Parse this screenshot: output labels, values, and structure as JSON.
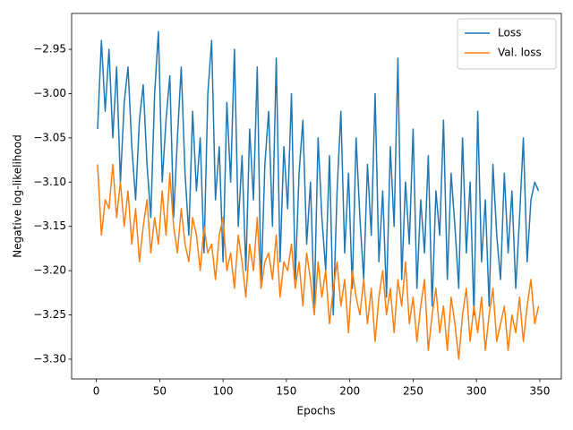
{
  "chart_data": {
    "type": "line",
    "xlabel": "Epochs",
    "ylabel": "Negative log-likelihood",
    "x": [
      1,
      4,
      7,
      10,
      13,
      16,
      19,
      22,
      25,
      28,
      31,
      34,
      37,
      40,
      43,
      46,
      49,
      52,
      55,
      58,
      61,
      64,
      67,
      70,
      73,
      76,
      79,
      82,
      85,
      88,
      91,
      94,
      97,
      100,
      103,
      106,
      109,
      112,
      115,
      118,
      121,
      124,
      127,
      130,
      133,
      136,
      139,
      142,
      145,
      148,
      151,
      154,
      157,
      160,
      163,
      166,
      169,
      172,
      175,
      178,
      181,
      184,
      187,
      190,
      193,
      196,
      199,
      202,
      205,
      208,
      211,
      214,
      217,
      220,
      223,
      226,
      229,
      232,
      235,
      238,
      241,
      244,
      247,
      250,
      253,
      256,
      259,
      262,
      265,
      268,
      271,
      274,
      277,
      280,
      283,
      286,
      289,
      292,
      295,
      298,
      301,
      304,
      307,
      310,
      313,
      316,
      319,
      322,
      325,
      328,
      331,
      334,
      337,
      340,
      343,
      346,
      349
    ],
    "series": [
      {
        "name": "Loss",
        "color": "#1f77b4",
        "values": [
          -3.04,
          -2.94,
          -3.02,
          -2.95,
          -3.05,
          -2.97,
          -3.1,
          -3.01,
          -2.97,
          -3.06,
          -3.12,
          -3.03,
          -2.99,
          -3.08,
          -3.14,
          -3.0,
          -2.93,
          -3.1,
          -3.03,
          -2.98,
          -3.14,
          -3.05,
          -2.97,
          -3.09,
          -3.16,
          -3.02,
          -3.11,
          -3.05,
          -3.18,
          -3.0,
          -2.94,
          -3.12,
          -3.06,
          -3.19,
          -3.01,
          -3.1,
          -2.95,
          -3.15,
          -3.07,
          -3.2,
          -3.04,
          -3.12,
          -2.97,
          -3.22,
          -3.08,
          -3.02,
          -3.15,
          -2.96,
          -3.19,
          -3.06,
          -3.13,
          -3.0,
          -3.21,
          -3.09,
          -3.03,
          -3.17,
          -3.1,
          -3.24,
          -3.05,
          -3.14,
          -3.2,
          -3.07,
          -3.25,
          -3.11,
          -3.02,
          -3.18,
          -3.09,
          -3.22,
          -3.05,
          -3.14,
          -3.21,
          -3.08,
          -3.16,
          -3.0,
          -3.19,
          -3.11,
          -3.23,
          -3.06,
          -3.15,
          -2.96,
          -3.21,
          -3.1,
          -3.17,
          -3.04,
          -3.22,
          -3.12,
          -3.18,
          -3.07,
          -3.24,
          -3.11,
          -3.16,
          -3.03,
          -3.21,
          -3.09,
          -3.15,
          -3.22,
          -3.05,
          -3.18,
          -3.1,
          -3.25,
          -3.02,
          -3.19,
          -3.12,
          -3.24,
          -3.08,
          -3.16,
          -3.21,
          -3.09,
          -3.18,
          -3.11,
          -3.22,
          -3.14,
          -3.05,
          -3.19,
          -3.12,
          -3.1,
          -3.11
        ]
      },
      {
        "name": "Val. loss",
        "color": "#ff7f0e",
        "values": [
          -3.08,
          -3.16,
          -3.12,
          -3.13,
          -3.08,
          -3.14,
          -3.1,
          -3.15,
          -3.11,
          -3.17,
          -3.13,
          -3.19,
          -3.15,
          -3.12,
          -3.18,
          -3.14,
          -3.17,
          -3.11,
          -3.16,
          -3.09,
          -3.15,
          -3.18,
          -3.13,
          -3.17,
          -3.19,
          -3.14,
          -3.16,
          -3.2,
          -3.15,
          -3.18,
          -3.17,
          -3.21,
          -3.16,
          -3.14,
          -3.2,
          -3.18,
          -3.22,
          -3.16,
          -3.19,
          -3.23,
          -3.17,
          -3.2,
          -3.14,
          -3.22,
          -3.19,
          -3.18,
          -3.21,
          -3.16,
          -3.23,
          -3.19,
          -3.2,
          -3.17,
          -3.22,
          -3.19,
          -3.24,
          -3.18,
          -3.21,
          -3.25,
          -3.19,
          -3.23,
          -3.2,
          -3.26,
          -3.22,
          -3.19,
          -3.24,
          -3.21,
          -3.27,
          -3.2,
          -3.23,
          -3.25,
          -3.21,
          -3.26,
          -3.22,
          -3.28,
          -3.23,
          -3.2,
          -3.25,
          -3.22,
          -3.27,
          -3.21,
          -3.24,
          -3.19,
          -3.26,
          -3.23,
          -3.28,
          -3.24,
          -3.21,
          -3.29,
          -3.25,
          -3.22,
          -3.27,
          -3.24,
          -3.29,
          -3.23,
          -3.26,
          -3.3,
          -3.25,
          -3.22,
          -3.28,
          -3.24,
          -3.27,
          -3.23,
          -3.29,
          -3.25,
          -3.22,
          -3.28,
          -3.26,
          -3.24,
          -3.29,
          -3.25,
          -3.27,
          -3.23,
          -3.28,
          -3.24,
          -3.21,
          -3.26,
          -3.24
        ]
      }
    ],
    "xlim": [
      -19.5,
      367
    ],
    "xticks": [
      0,
      50,
      100,
      150,
      200,
      250,
      300,
      350
    ],
    "ylim": [
      -3.3223,
      -2.9095
    ],
    "yticks": [
      {
        "value": -2.95,
        "label": "−2.95"
      },
      {
        "value": -3.0,
        "label": "−3.00"
      },
      {
        "value": -3.05,
        "label": "−3.05"
      },
      {
        "value": -3.1,
        "label": "−3.10"
      },
      {
        "value": -3.15,
        "label": "−3.15"
      },
      {
        "value": -3.2,
        "label": "−3.20"
      },
      {
        "value": -3.25,
        "label": "−3.25"
      },
      {
        "value": -3.3,
        "label": "−3.30"
      }
    ],
    "legend": "upper right"
  }
}
